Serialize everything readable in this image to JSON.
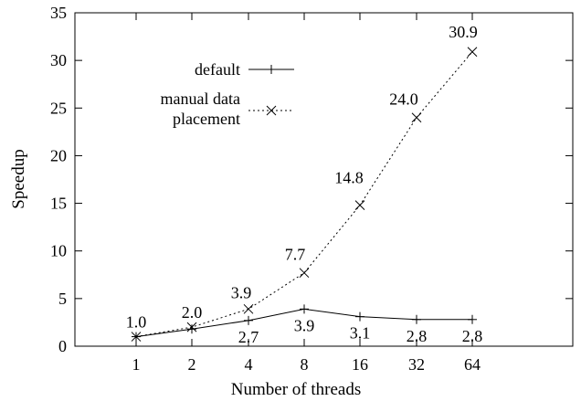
{
  "chart_data": {
    "type": "line",
    "title": "",
    "xlabel": "Number of threads",
    "ylabel": "Speedup",
    "categories": [
      "1",
      "2",
      "4",
      "8",
      "16",
      "32",
      "64"
    ],
    "ylim": [
      0,
      35
    ],
    "yticks": [
      0,
      5,
      10,
      15,
      20,
      25,
      30,
      35
    ],
    "grid": false,
    "legend_position": "top-left",
    "series": [
      {
        "name": "default",
        "values": [
          1.0,
          1.8,
          2.7,
          3.9,
          3.1,
          2.8,
          2.8
        ],
        "labels": [
          "",
          "",
          "2.7",
          "3.9",
          "3.1",
          "2.8",
          "2.8"
        ],
        "line_style": "solid",
        "marker": "plus"
      },
      {
        "name": "manual data placement",
        "legend_lines": [
          "manual data",
          "placement"
        ],
        "values": [
          1.0,
          2.0,
          3.9,
          7.7,
          14.8,
          24.0,
          30.9
        ],
        "labels": [
          "1.0",
          "2.0",
          "3.9",
          "7.7",
          "14.8",
          "24.0",
          "30.9"
        ],
        "line_style": "dotted",
        "marker": "cross"
      }
    ]
  }
}
